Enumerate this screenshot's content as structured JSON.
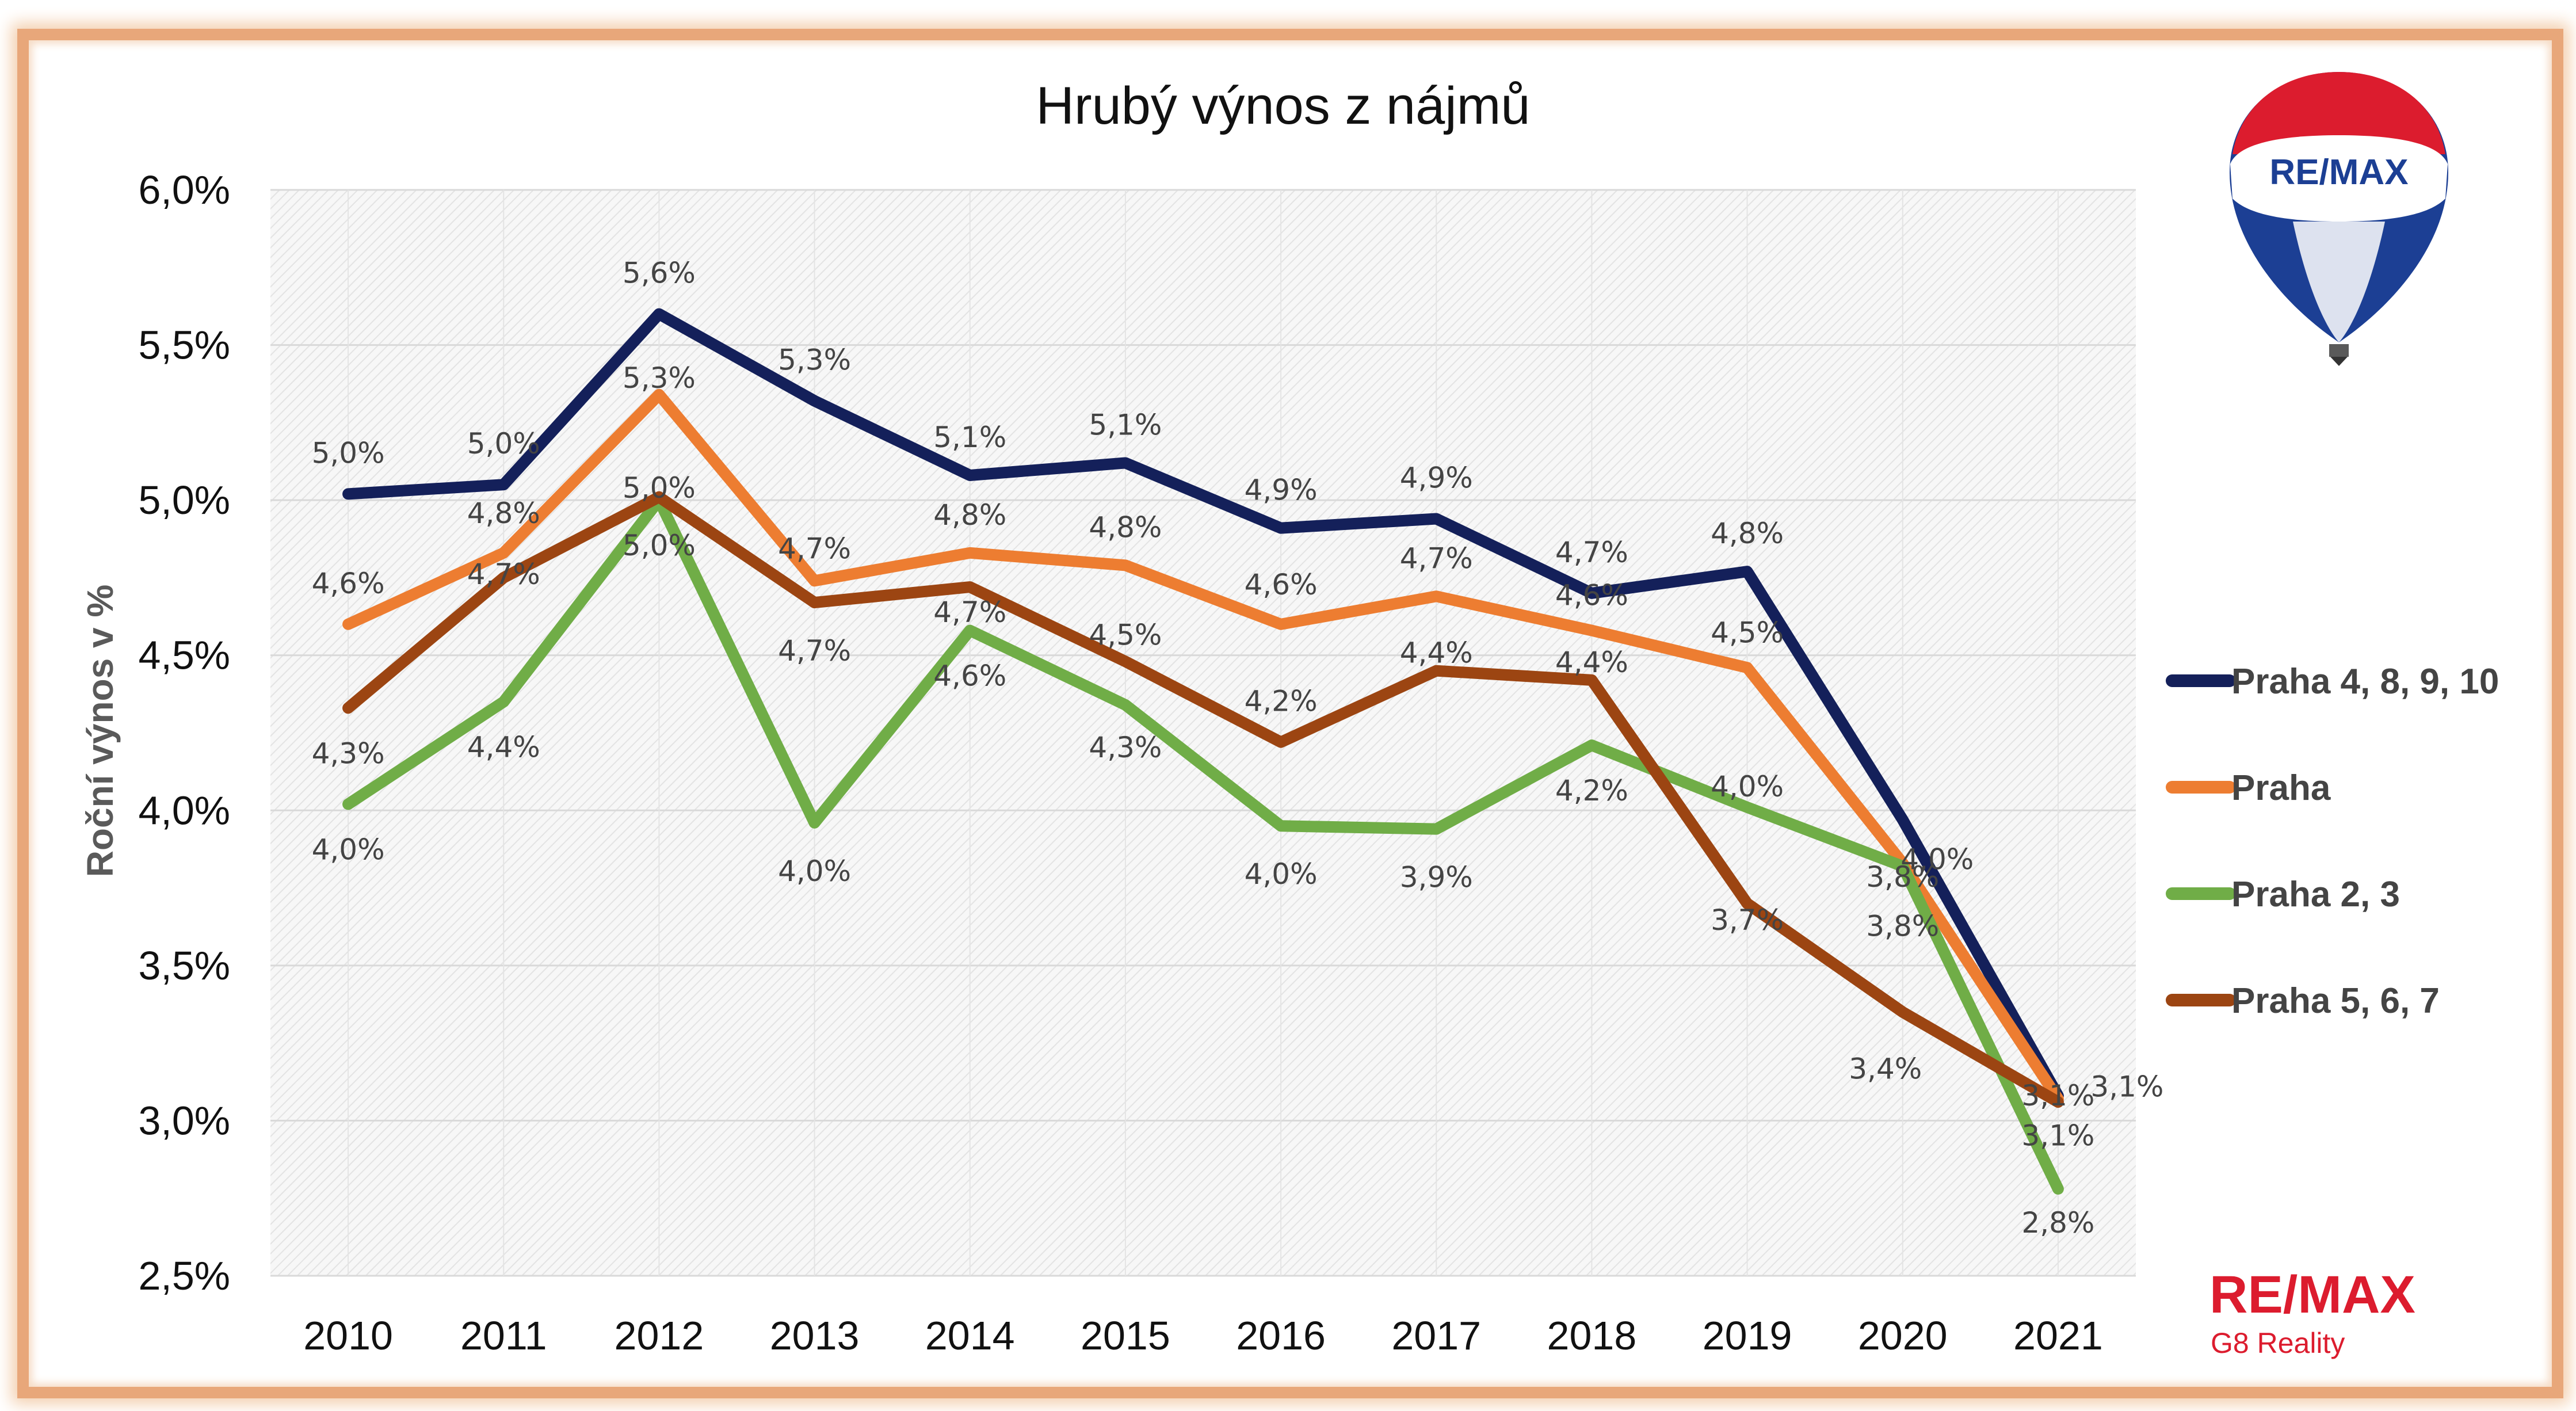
{
  "chart_data": {
    "type": "line",
    "title": "Hrubý výnos z nájmů",
    "xlabel": "",
    "ylabel": "Roční výnos v %",
    "categories": [
      "2010",
      "2011",
      "2012",
      "2013",
      "2014",
      "2015",
      "2016",
      "2017",
      "2018",
      "2019",
      "2020",
      "2021"
    ],
    "ylim": [
      2.5,
      6.0
    ],
    "yticks": [
      "2,5%",
      "3,0%",
      "3,5%",
      "4,0%",
      "4,5%",
      "5,0%",
      "5,5%",
      "6,0%"
    ],
    "grid": true,
    "legend_position": "right",
    "series": [
      {
        "name": "Praha 4, 8, 9, 10",
        "color": "#14205a",
        "values": [
          5.02,
          5.05,
          5.6,
          5.32,
          5.08,
          5.12,
          4.91,
          4.94,
          4.7,
          4.77,
          3.97,
          3.08
        ],
        "labels": [
          "5,0%",
          "5,0%",
          "5,6%",
          "5,3%",
          "5,1%",
          "5,1%",
          "4,9%",
          "4,9%",
          "4,7%",
          "4,8%",
          "4,0%",
          "3,1%"
        ]
      },
      {
        "name": "Praha",
        "color": "#ed7d31",
        "values": [
          4.6,
          4.83,
          5.34,
          4.74,
          4.83,
          4.79,
          4.6,
          4.69,
          4.58,
          4.46,
          3.83,
          3.07
        ],
        "labels": [
          "4,6%",
          "4,8%",
          "5,3%",
          "4,7%",
          "4,8%",
          "4,8%",
          "4,6%",
          "4,7%",
          "4,6%",
          "4,5%",
          "3,8%",
          "3,1%"
        ]
      },
      {
        "name": "Praha 2, 3",
        "color": "#70ad47",
        "values": [
          4.02,
          4.35,
          5.0,
          3.96,
          4.58,
          4.34,
          3.95,
          3.94,
          4.21,
          4.01,
          3.82,
          2.78
        ],
        "labels": [
          "4,0%",
          "4,4%",
          "5,0%",
          "4,0%",
          "4,6%",
          "4,3%",
          "4,0%",
          "3,9%",
          "4,2%",
          "4,0%",
          "3,8%",
          "2,8%"
        ]
      },
      {
        "name": "Praha 5, 6, 7",
        "color": "#9c4512",
        "values": [
          4.33,
          4.75,
          5.01,
          4.67,
          4.72,
          4.48,
          4.22,
          4.45,
          4.42,
          3.7,
          3.35,
          3.06
        ],
        "labels": [
          "4,3%",
          "4,7%",
          "5,0%",
          "4,7%",
          "4,7%",
          "4,5%",
          "4,2%",
          "4,4%",
          "4,4%",
          "3,7%",
          "3,4%",
          "3,1%"
        ]
      }
    ]
  },
  "logo": {
    "balloon_text": "RE/MAX",
    "brand_text": "RE/MAX",
    "brand_sub": "G8 Reality",
    "brand_color": "#dc1c2e",
    "blue_color": "#1c3f94"
  }
}
